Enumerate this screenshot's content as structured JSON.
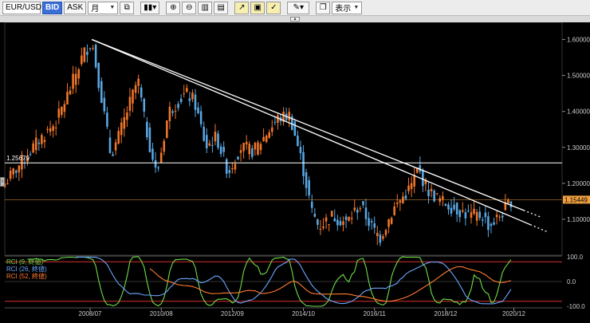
{
  "toolbar": {
    "symbol": "EUR/USD",
    "bid_label": "BID",
    "ask_label": "ASK",
    "timeframe": "月",
    "display_label": "表示"
  },
  "chart_data": {
    "type": "candlestick",
    "price_axis": {
      "ylim": [
        1.0,
        1.63
      ],
      "ticks": [
        "1.60000",
        "1.50000",
        "1.40000",
        "1.30000",
        "1.20000",
        "1.10000"
      ]
    },
    "time_axis": {
      "xlim": [
        2006.0,
        2022.33
      ],
      "labels": [
        "2008/07",
        "2010/08",
        "2012/09",
        "2014/10",
        "2016/11",
        "2018/12",
        "2020/12"
      ]
    },
    "horizontal_line": {
      "value": 1.25679,
      "label": "1.25679"
    },
    "current_price": {
      "value": 1.15449,
      "label": "1.15449"
    },
    "trendlines": [
      {
        "x1": 2008.55,
        "y1": 1.6,
        "x2": 2021.2,
        "y2": 1.125
      },
      {
        "x1": 2008.55,
        "y1": 1.6,
        "x2": 2021.4,
        "y2": 1.085
      }
    ],
    "anchors": [
      [
        2006.0,
        1.2
      ],
      [
        2006.5,
        1.26
      ],
      [
        2007.0,
        1.32
      ],
      [
        2007.5,
        1.37
      ],
      [
        2007.9,
        1.46
      ],
      [
        2008.3,
        1.56
      ],
      [
        2008.55,
        1.595
      ],
      [
        2008.85,
        1.43
      ],
      [
        2009.1,
        1.28
      ],
      [
        2009.3,
        1.32
      ],
      [
        2009.9,
        1.49
      ],
      [
        2010.1,
        1.37
      ],
      [
        2010.45,
        1.22
      ],
      [
        2010.8,
        1.4
      ],
      [
        2011.3,
        1.45
      ],
      [
        2011.55,
        1.43
      ],
      [
        2011.9,
        1.3
      ],
      [
        2012.2,
        1.33
      ],
      [
        2012.55,
        1.23
      ],
      [
        2012.9,
        1.3
      ],
      [
        2013.3,
        1.29
      ],
      [
        2013.6,
        1.33
      ],
      [
        2014.0,
        1.38
      ],
      [
        2014.35,
        1.39
      ],
      [
        2014.7,
        1.26
      ],
      [
        2015.0,
        1.12
      ],
      [
        2015.2,
        1.08
      ],
      [
        2015.6,
        1.11
      ],
      [
        2016.0,
        1.09
      ],
      [
        2016.4,
        1.14
      ],
      [
        2016.8,
        1.07
      ],
      [
        2017.0,
        1.05
      ],
      [
        2017.4,
        1.13
      ],
      [
        2017.9,
        1.19
      ],
      [
        2018.1,
        1.24
      ],
      [
        2018.4,
        1.18
      ],
      [
        2018.8,
        1.15
      ],
      [
        2019.2,
        1.13
      ],
      [
        2019.6,
        1.11
      ],
      [
        2020.0,
        1.11
      ],
      [
        2020.2,
        1.08
      ],
      [
        2020.6,
        1.12
      ],
      [
        2020.85,
        1.155
      ]
    ],
    "indicator": {
      "ylim": [
        -100,
        100
      ],
      "ticks": [
        "100.0",
        "0.0",
        "-100.0"
      ],
      "levels": [
        80,
        -80
      ],
      "series": [
        {
          "name": "RCI (9, 終値)",
          "color": "#6ede4a"
        },
        {
          "name": "RCI (26, 終値)",
          "color": "#6aa6ff"
        },
        {
          "name": "RCI (52, 終値)",
          "color": "#ff7a30"
        }
      ]
    }
  },
  "colors": {
    "bull": "#f0762a",
    "bear": "#5aa7e3",
    "background": "#000000",
    "price_tag": "#f0a040",
    "level_line": "#d83030"
  }
}
